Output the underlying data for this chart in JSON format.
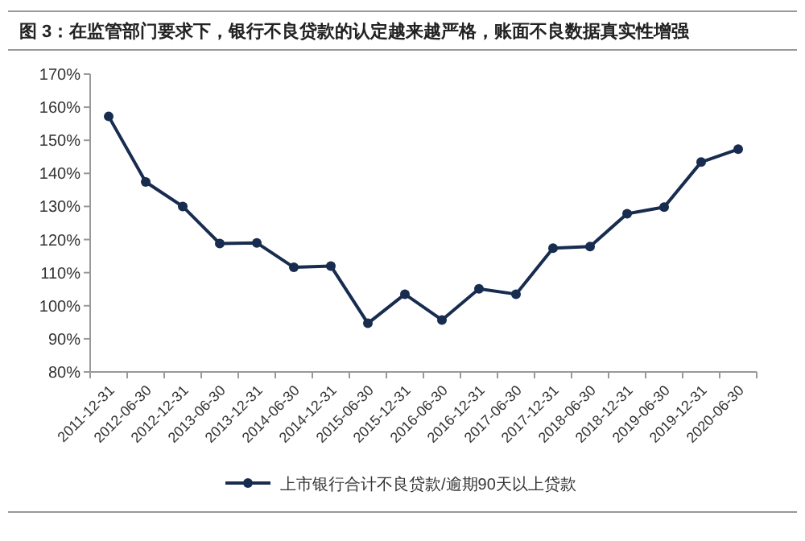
{
  "chart_data": {
    "type": "line",
    "title": "图 3：在监管部门要求下，银行不良贷款的认定越来越严格，账面不良数据真实性增强",
    "categories": [
      "2011-12-31",
      "2012-06-30",
      "2012-12-31",
      "2013-06-30",
      "2013-12-31",
      "2014-06-30",
      "2014-12-31",
      "2015-06-30",
      "2015-12-31",
      "2016-06-30",
      "2016-12-31",
      "2017-06-30",
      "2017-12-31",
      "2018-06-30",
      "2018-12-31",
      "2019-06-30",
      "2019-12-31",
      "2020-06-30"
    ],
    "series": [
      {
        "name": "上市银行合计不良贷款/逾期90天以上贷款",
        "color": "#172c4f",
        "values": [
          157.2,
          137.4,
          130,
          118.8,
          119,
          111.6,
          112,
          94.7,
          103.5,
          95.7,
          105.1,
          103.5,
          117.4,
          117.9,
          127.8,
          129.8,
          143.4,
          147.3
        ]
      }
    ],
    "ylim": [
      80,
      170
    ],
    "yticks": [
      {
        "value": 80,
        "label": "80%"
      },
      {
        "value": 90,
        "label": "90%"
      },
      {
        "value": 100,
        "label": "100%"
      },
      {
        "value": 110,
        "label": "110%"
      },
      {
        "value": 120,
        "label": "120%"
      },
      {
        "value": 130,
        "label": "130%"
      },
      {
        "value": 140,
        "label": "140%"
      },
      {
        "value": 150,
        "label": "150%"
      },
      {
        "value": 160,
        "label": "160%"
      },
      {
        "value": 170,
        "label": "170%"
      }
    ],
    "grid": false,
    "legend": "bottom",
    "marker": "circle",
    "line_style": "solid"
  }
}
